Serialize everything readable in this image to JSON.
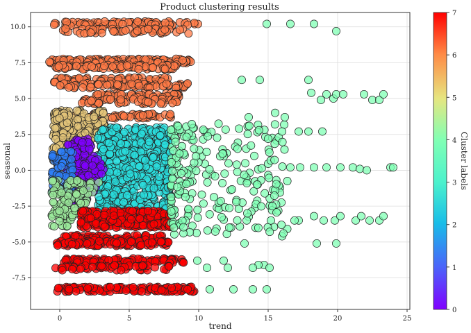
{
  "chart_data": {
    "type": "scatter",
    "title": "Product clustering results",
    "xlabel": "trend",
    "ylabel": "seasonal",
    "xlim": [
      -2.1,
      25.2
    ],
    "ylim": [
      -9.7,
      11.0
    ],
    "xticks": [
      0,
      5,
      10,
      15,
      20,
      25
    ],
    "yticks": [
      -7.5,
      -5.0,
      -2.5,
      0.0,
      2.5,
      5.0,
      7.5,
      10.0
    ],
    "grid": true,
    "colorbar": {
      "label": "Cluster labels",
      "range": [
        0,
        7
      ],
      "ticks": [
        0,
        1,
        2,
        3,
        4,
        5,
        6,
        7
      ],
      "colormap": "rainbow"
    },
    "clusters": [
      {
        "label": 0,
        "color": "#8000ff",
        "center": [
          2.2,
          0.2
        ],
        "region": "low trend, near-zero seasonal"
      },
      {
        "label": 1,
        "color": "#2c7ef7",
        "center": [
          0.2,
          0.5
        ],
        "region": "trend near 0, seasonal near 0"
      },
      {
        "label": 2,
        "color": "#2adddd",
        "center": [
          5.2,
          0.0
        ],
        "region": "trend 3-8, seasonal -3 to 3"
      },
      {
        "label": 3,
        "color": "#80ffb4",
        "center": [
          12.0,
          0.0
        ],
        "region": "trend 8-24, seasonal -7 to 10"
      },
      {
        "label": 4,
        "color": "#9ae89a",
        "center": [
          1.0,
          -2.5
        ],
        "region": "trend -1 to 3, seasonal -4 to -1"
      },
      {
        "label": 5,
        "color": "#e3c47a",
        "center": [
          1.5,
          4.0
        ],
        "region": "trend 0-5, seasonal 2-6"
      },
      {
        "label": 6,
        "color": "#ff7a45",
        "center": [
          4.0,
          7.0
        ],
        "region": "trend 0-13, seasonal 5-10"
      },
      {
        "label": 7,
        "color": "#ff0000",
        "center": [
          4.5,
          -6.0
        ],
        "region": "trend 0-10, seasonal -3 to -8.3"
      }
    ]
  }
}
